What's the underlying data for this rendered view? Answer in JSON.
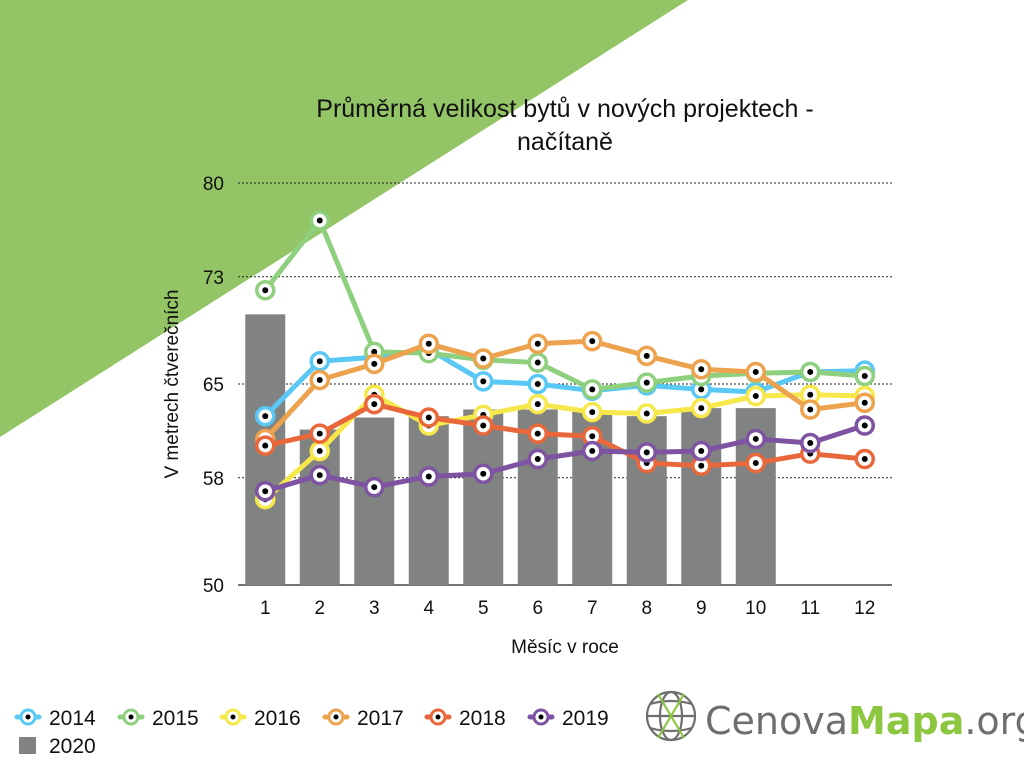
{
  "chart_data": {
    "type": "line",
    "title_lines": [
      "Průměrná velikost bytů v nových projektech -",
      "načítaně"
    ],
    "xlabel": "Měsíc v roce",
    "ylabel": "V metrech čtverečních",
    "ylim": [
      50,
      80
    ],
    "yticks": [
      50,
      58,
      65,
      73,
      80
    ],
    "ytick_labels": [
      "50",
      "58",
      "65",
      "73",
      "80"
    ],
    "categories": [
      "1",
      "2",
      "3",
      "4",
      "5",
      "6",
      "7",
      "8",
      "9",
      "10",
      "11",
      "12"
    ],
    "grid": "horizontal-dotted",
    "legend_position": "bottom-left",
    "bar_series": {
      "name": "2020",
      "color": "#808381",
      "values": [
        70.2,
        61.6,
        62.5,
        62.6,
        63.1,
        63.1,
        63.0,
        62.6,
        63.2,
        63.2,
        null,
        null
      ]
    },
    "series": [
      {
        "name": "2014",
        "color": "#5AC8F5",
        "values": [
          62.6,
          66.7,
          67.0,
          67.6,
          65.2,
          65.0,
          64.5,
          64.9,
          64.6,
          64.4,
          65.9,
          66.0
        ]
      },
      {
        "name": "2015",
        "color": "#8ED07E",
        "values": [
          72.0,
          77.2,
          67.4,
          67.3,
          66.8,
          66.6,
          64.6,
          65.1,
          65.6,
          65.8,
          65.9,
          65.6
        ]
      },
      {
        "name": "2016",
        "color": "#F6E84A",
        "values": [
          56.4,
          60.0,
          64.2,
          61.9,
          62.7,
          63.5,
          62.9,
          62.8,
          63.2,
          64.1,
          64.2,
          64.1
        ]
      },
      {
        "name": "2017",
        "color": "#EDA24E",
        "values": [
          60.9,
          65.3,
          66.5,
          68.0,
          66.9,
          68.0,
          68.2,
          67.1,
          66.1,
          65.9,
          63.1,
          63.6
        ]
      },
      {
        "name": "2018",
        "color": "#E8683C",
        "values": [
          60.4,
          61.3,
          63.5,
          62.5,
          61.9,
          61.3,
          61.1,
          59.1,
          58.9,
          59.1,
          59.8,
          59.4
        ]
      },
      {
        "name": "2019",
        "color": "#7D53A2",
        "values": [
          57.0,
          58.2,
          57.3,
          58.1,
          58.3,
          59.4,
          60.0,
          59.9,
          60.0,
          60.9,
          60.6,
          61.9
        ]
      }
    ]
  },
  "branding": {
    "text_regular": "Cenova",
    "text_bold": "Mapa",
    "text_suffix": ".org",
    "icon": "globe-icon",
    "color_gray": "#6d6e70",
    "color_green": "#8dc63f"
  },
  "decoration": {
    "corner_color": "#93c465"
  }
}
